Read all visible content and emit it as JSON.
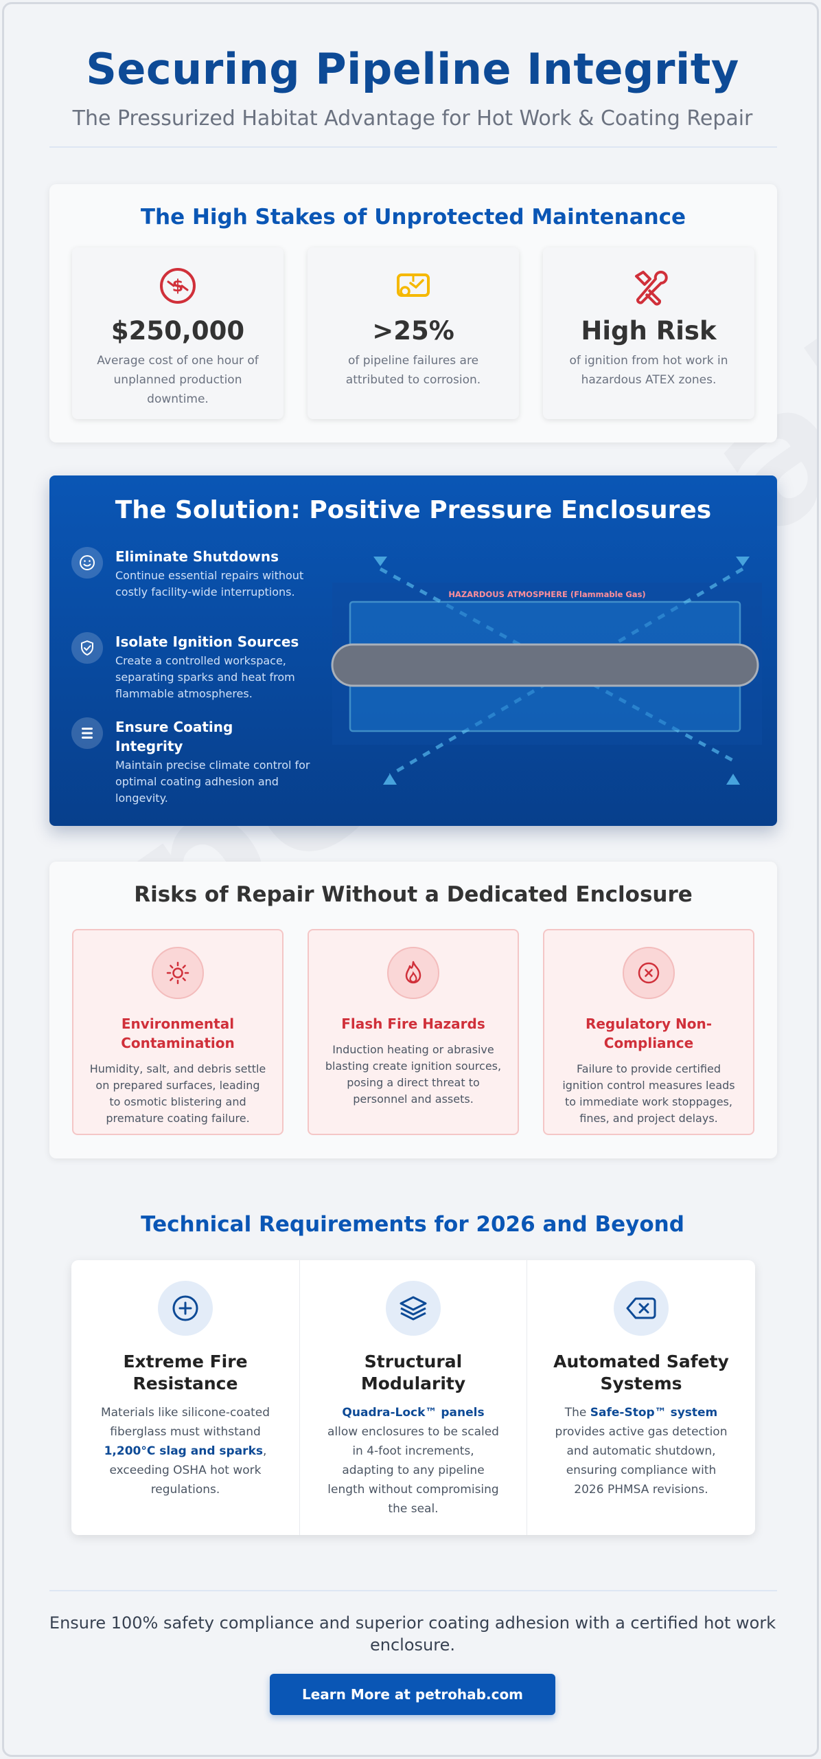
{
  "header": {
    "title": "Securing Pipeline Integrity",
    "subtitle": "The Pressurized Habitat Advantage for Hot Work & Coating Repair"
  },
  "watermark": "petrohab",
  "stakes": {
    "title": "The High Stakes of Unprotected Maintenance",
    "cards": [
      {
        "icon": "money-clock-icon",
        "value": "$250,000",
        "desc": "Average cost of one hour of unplanned production downtime."
      },
      {
        "icon": "corroded-pipe-icon",
        "value": ">25%",
        "desc": "of pipeline failures are attributed to corrosion."
      },
      {
        "icon": "wrench-tools-icon",
        "value": "High Risk",
        "desc": "of ignition from hot work in hazardous ATEX zones."
      }
    ],
    "colors": {
      "title": "#0a56b5",
      "icon_red": "#d0303a",
      "icon_yellow": "#f5b800"
    }
  },
  "solution": {
    "title": "The Solution: Positive Pressure Enclosures",
    "features": [
      {
        "icon": "smile-icon",
        "title": "Eliminate Shutdowns",
        "desc": "Continue essential repairs without costly facility-wide interruptions."
      },
      {
        "icon": "shield-check-icon",
        "title": "Isolate Ignition Sources",
        "desc": "Create a controlled workspace, separating sparks and heat from flammable atmospheres."
      },
      {
        "icon": "layers-icon",
        "title": "Ensure Coating Integrity",
        "desc": "Maintain precise climate control for optimal coating adhesion and longevity."
      }
    ],
    "diagram_label": "HAZARDOUS ATMOSPHERE (Flammable Gas)"
  },
  "risks": {
    "title": "Risks of Repair Without a Dedicated Enclosure",
    "cards": [
      {
        "icon": "sun-icon",
        "title": "Environmental Contamination",
        "desc": "Humidity, salt, and debris settle on prepared surfaces, leading to osmotic blistering and premature coating failure."
      },
      {
        "icon": "flame-icon",
        "title": "Flash Fire Hazards",
        "desc": "Induction heating or abrasive blasting create ignition sources, posing a direct threat to personnel and assets."
      },
      {
        "icon": "x-circle-icon",
        "title": "Regulatory Non-Compliance",
        "desc": "Failure to provide certified ignition control measures leads to immediate work stoppages, fines, and project delays."
      }
    ]
  },
  "tech": {
    "title": "Technical Requirements for 2026 and Beyond",
    "cols": [
      {
        "icon": "plus-circle-icon",
        "heading": "Extreme Fire Resistance",
        "p_pre": "Materials like silicone-coated fiberglass must withstand ",
        "p_bold": "1,200°C slag and sparks",
        "p_post": ", exceeding OSHA hot work regulations."
      },
      {
        "icon": "stack-icon",
        "heading": "Structural Modularity",
        "p_pre": "",
        "p_bold": "Quadra-Lock™ panels",
        "p_post": " allow enclosures to be scaled in 4-foot increments, adapting to any pipeline length without compromising the seal."
      },
      {
        "icon": "backspace-icon",
        "heading": "Automated Safety Systems",
        "p_pre": "The ",
        "p_bold": "Safe-Stop™ system",
        "p_post": " provides active gas detection and automatic shutdown, ensuring compliance with 2026 PHMSA revisions."
      }
    ]
  },
  "footer": {
    "text": "Ensure 100% safety compliance and superior coating adhesion with a certified hot work enclosure.",
    "cta": "Learn More at petrohab.com"
  }
}
